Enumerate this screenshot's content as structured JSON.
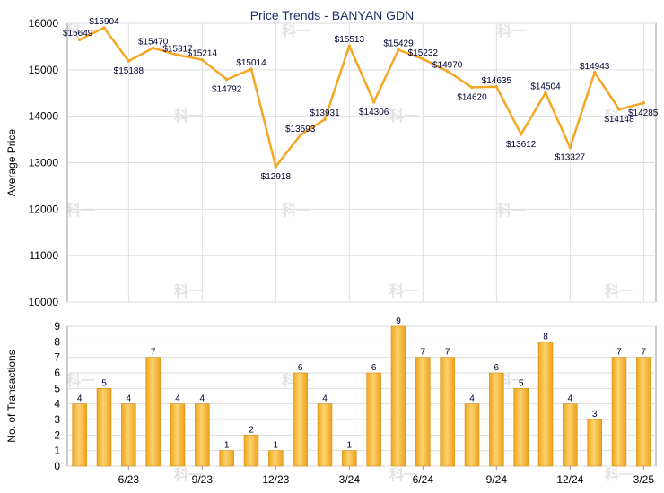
{
  "title": "Price Trends - BANYAN GDN",
  "watermark": "科一",
  "chart_data": [
    {
      "type": "line",
      "ylabel": "Average Price",
      "ylim": [
        10000,
        16000
      ],
      "yticks": [
        10000,
        11000,
        12000,
        13000,
        14000,
        15000,
        16000
      ],
      "grid": true,
      "line_color": "#f5a623",
      "series": [
        {
          "values": [
            15649,
            15904,
            15188,
            15470,
            15317,
            15214,
            14792,
            15014,
            12918,
            13593,
            13931,
            15513,
            14306,
            15429,
            15232,
            14970,
            14620,
            14635,
            13612,
            14504,
            13327,
            14943,
            14148,
            14285
          ]
        }
      ],
      "point_labels": [
        "$15649",
        "$15904",
        "$15188",
        "$15470",
        "$15317",
        "$15214",
        "$14792",
        "$15014",
        "$12918",
        "$13593",
        "$13931",
        "$15513",
        "$14306",
        "$15429",
        "$15232",
        "$14970",
        "$14620",
        "$14635",
        "$13612",
        "$14504",
        "$13327",
        "$14943",
        "$14148",
        "$14285"
      ]
    },
    {
      "type": "bar",
      "ylabel": "No. of Transactions",
      "ylim": [
        0,
        9
      ],
      "yticks": [
        0,
        1,
        2,
        3,
        4,
        5,
        6,
        7,
        8,
        9
      ],
      "grid": true,
      "bar_color": "#f5b731",
      "values": [
        4,
        5,
        4,
        7,
        4,
        4,
        1,
        2,
        1,
        6,
        4,
        1,
        6,
        9,
        7,
        7,
        4,
        6,
        5,
        8,
        4,
        3,
        7,
        7
      ],
      "x_tick_labels": [
        "6/23",
        "9/23",
        "12/23",
        "3/24",
        "6/24",
        "9/24",
        "12/24",
        "3/25"
      ]
    }
  ]
}
